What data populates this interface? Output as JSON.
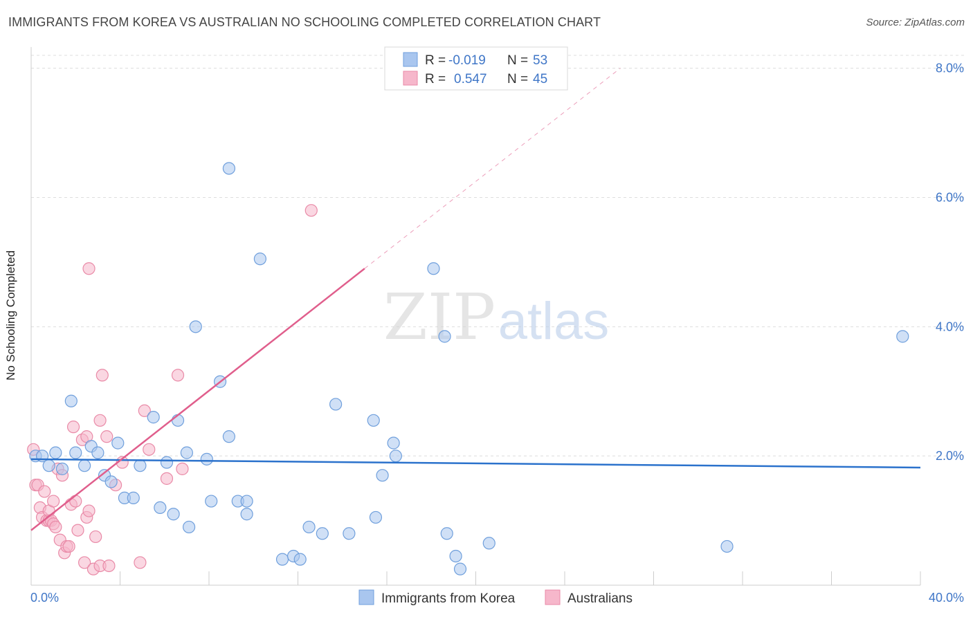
{
  "title": "IMMIGRANTS FROM KOREA VS AUSTRALIAN NO SCHOOLING COMPLETED CORRELATION CHART",
  "source": "Source: ZipAtlas.com",
  "watermark": {
    "zip": "ZIP",
    "atlas": "atlas"
  },
  "colors": {
    "korea_fill": "#a9c6ef",
    "korea_stroke": "#6f9fdc",
    "korea_line": "#2b72cc",
    "aus_fill": "#f6b7cb",
    "aus_stroke": "#e98aa7",
    "aus_line": "#e05e8c",
    "tick_label": "#3f76c7",
    "grid": "#dddddd"
  },
  "legend": {
    "rows": [
      {
        "r_label": "R =",
        "r_value": "-0.019",
        "n_label": "N =",
        "n_value": "53"
      },
      {
        "r_label": "R =",
        "r_value": "0.547",
        "n_label": "N =",
        "n_value": "45"
      }
    ]
  },
  "bottom_legend": [
    "Immigrants from Korea",
    "Australians"
  ],
  "chart_data": {
    "type": "scatter",
    "title": "IMMIGRANTS FROM KOREA VS AUSTRALIAN NO SCHOOLING COMPLETED CORRELATION CHART",
    "xlabel": "",
    "ylabel": "No Schooling Completed",
    "xlim": [
      0,
      40
    ],
    "ylim": [
      0,
      8.2
    ],
    "x_tick_labels": [
      "0.0%",
      "40.0%"
    ],
    "y_ticks": [
      2,
      4,
      6,
      8
    ],
    "y_tick_labels": [
      "2.0%",
      "4.0%",
      "6.0%",
      "8.0%"
    ],
    "grid": true,
    "legend_position": "top-center",
    "series": [
      {
        "name": "Immigrants from Korea",
        "R": -0.019,
        "N": 53,
        "trend": {
          "x": [
            0,
            40
          ],
          "y": [
            1.95,
            1.82
          ]
        },
        "points": [
          [
            0.2,
            2.0
          ],
          [
            0.5,
            2.0
          ],
          [
            0.8,
            1.85
          ],
          [
            1.1,
            2.05
          ],
          [
            1.4,
            1.8
          ],
          [
            1.8,
            2.85
          ],
          [
            2.0,
            2.05
          ],
          [
            2.4,
            1.85
          ],
          [
            2.7,
            2.15
          ],
          [
            3.0,
            2.05
          ],
          [
            3.3,
            1.7
          ],
          [
            3.6,
            1.6
          ],
          [
            3.9,
            2.2
          ],
          [
            4.2,
            1.35
          ],
          [
            4.6,
            1.35
          ],
          [
            4.9,
            1.85
          ],
          [
            5.5,
            2.6
          ],
          [
            5.8,
            1.2
          ],
          [
            6.1,
            1.9
          ],
          [
            6.4,
            1.1
          ],
          [
            6.6,
            2.55
          ],
          [
            7.0,
            2.05
          ],
          [
            7.1,
            0.9
          ],
          [
            7.4,
            4.0
          ],
          [
            7.9,
            1.95
          ],
          [
            8.1,
            1.3
          ],
          [
            8.5,
            3.15
          ],
          [
            8.9,
            2.3
          ],
          [
            8.9,
            6.45
          ],
          [
            9.3,
            1.3
          ],
          [
            9.7,
            1.1
          ],
          [
            9.7,
            1.3
          ],
          [
            10.3,
            5.05
          ],
          [
            11.3,
            0.4
          ],
          [
            11.8,
            0.45
          ],
          [
            12.1,
            0.4
          ],
          [
            12.5,
            0.9
          ],
          [
            13.1,
            0.8
          ],
          [
            13.7,
            2.8
          ],
          [
            14.3,
            0.8
          ],
          [
            15.4,
            2.55
          ],
          [
            15.5,
            1.05
          ],
          [
            15.8,
            1.7
          ],
          [
            16.3,
            2.2
          ],
          [
            16.4,
            2.0
          ],
          [
            18.1,
            4.9
          ],
          [
            18.6,
            3.85
          ],
          [
            18.7,
            0.8
          ],
          [
            19.1,
            0.45
          ],
          [
            19.3,
            0.25
          ],
          [
            20.6,
            0.65
          ],
          [
            31.3,
            0.6
          ],
          [
            39.2,
            3.85
          ]
        ]
      },
      {
        "name": "Australians",
        "R": 0.547,
        "N": 45,
        "trend": {
          "x": [
            0,
            15
          ],
          "y": [
            0.85,
            4.9
          ]
        },
        "trend_extension": {
          "x": [
            15,
            26.5
          ],
          "y": [
            4.9,
            8.0
          ]
        },
        "points": [
          [
            0.1,
            2.1
          ],
          [
            0.2,
            1.55
          ],
          [
            0.3,
            1.55
          ],
          [
            0.4,
            1.2
          ],
          [
            0.5,
            1.05
          ],
          [
            0.6,
            1.45
          ],
          [
            0.7,
            1.0
          ],
          [
            0.8,
            1.0
          ],
          [
            0.8,
            1.15
          ],
          [
            0.9,
            1.0
          ],
          [
            1.0,
            0.95
          ],
          [
            1.0,
            1.3
          ],
          [
            1.1,
            0.9
          ],
          [
            1.2,
            1.8
          ],
          [
            1.3,
            0.7
          ],
          [
            1.4,
            1.7
          ],
          [
            1.5,
            0.5
          ],
          [
            1.6,
            0.6
          ],
          [
            1.7,
            0.6
          ],
          [
            1.8,
            1.25
          ],
          [
            1.9,
            2.45
          ],
          [
            2.0,
            1.3
          ],
          [
            2.1,
            0.85
          ],
          [
            2.3,
            2.25
          ],
          [
            2.4,
            0.35
          ],
          [
            2.5,
            1.05
          ],
          [
            2.5,
            2.3
          ],
          [
            2.6,
            4.9
          ],
          [
            2.6,
            1.15
          ],
          [
            2.8,
            0.25
          ],
          [
            2.9,
            0.75
          ],
          [
            3.1,
            0.3
          ],
          [
            3.1,
            2.55
          ],
          [
            3.2,
            3.25
          ],
          [
            3.4,
            2.3
          ],
          [
            3.5,
            0.3
          ],
          [
            3.8,
            1.55
          ],
          [
            4.1,
            1.9
          ],
          [
            4.9,
            0.35
          ],
          [
            5.1,
            2.7
          ],
          [
            5.3,
            2.1
          ],
          [
            6.1,
            1.65
          ],
          [
            6.6,
            3.25
          ],
          [
            6.8,
            1.8
          ],
          [
            12.6,
            5.8
          ]
        ]
      }
    ]
  }
}
